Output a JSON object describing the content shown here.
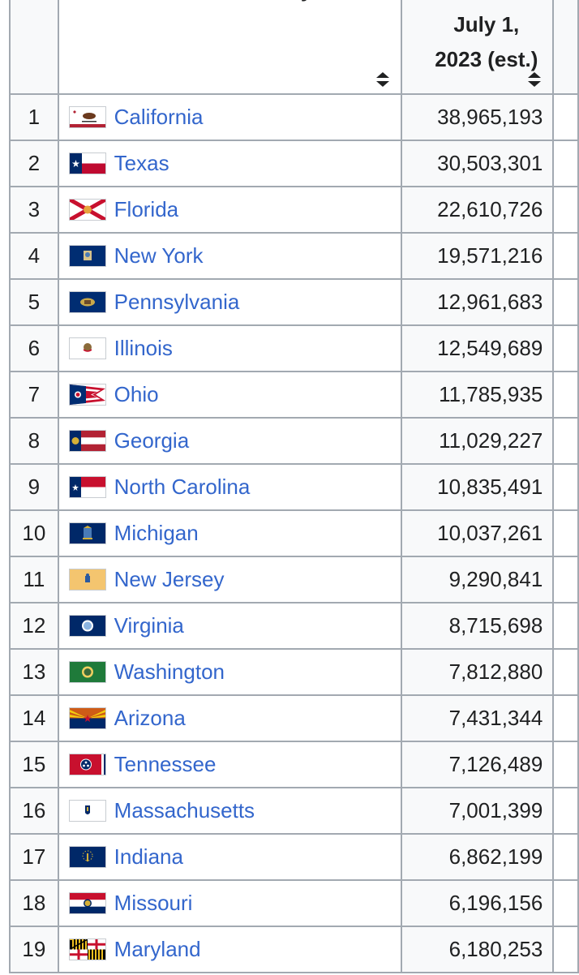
{
  "headers": {
    "state": "State or territory",
    "population": "July 1, 2023 (est.)"
  },
  "rows": [
    {
      "rank": "1",
      "state": "California",
      "population": "38,965,193",
      "flag": "california-flag"
    },
    {
      "rank": "2",
      "state": "Texas",
      "population": "30,503,301",
      "flag": "texas-flag"
    },
    {
      "rank": "3",
      "state": "Florida",
      "population": "22,610,726",
      "flag": "florida-flag"
    },
    {
      "rank": "4",
      "state": "New York",
      "population": "19,571,216",
      "flag": "new-york-flag"
    },
    {
      "rank": "5",
      "state": "Pennsylvania",
      "population": "12,961,683",
      "flag": "pennsylvania-flag"
    },
    {
      "rank": "6",
      "state": "Illinois",
      "population": "12,549,689",
      "flag": "illinois-flag"
    },
    {
      "rank": "7",
      "state": "Ohio",
      "population": "11,785,935",
      "flag": "ohio-flag"
    },
    {
      "rank": "8",
      "state": "Georgia",
      "population": "11,029,227",
      "flag": "georgia-flag"
    },
    {
      "rank": "9",
      "state": "North Carolina",
      "population": "10,835,491",
      "flag": "north-carolina-flag"
    },
    {
      "rank": "10",
      "state": "Michigan",
      "population": "10,037,261",
      "flag": "michigan-flag"
    },
    {
      "rank": "11",
      "state": "New Jersey",
      "population": "9,290,841",
      "flag": "new-jersey-flag"
    },
    {
      "rank": "12",
      "state": "Virginia",
      "population": "8,715,698",
      "flag": "virginia-flag"
    },
    {
      "rank": "13",
      "state": "Washington",
      "population": "7,812,880",
      "flag": "washington-flag"
    },
    {
      "rank": "14",
      "state": "Arizona",
      "population": "7,431,344",
      "flag": "arizona-flag"
    },
    {
      "rank": "15",
      "state": "Tennessee",
      "population": "7,126,489",
      "flag": "tennessee-flag"
    },
    {
      "rank": "16",
      "state": "Massachusetts",
      "population": "7,001,399",
      "flag": "massachusetts-flag"
    },
    {
      "rank": "17",
      "state": "Indiana",
      "population": "6,862,199",
      "flag": "indiana-flag"
    },
    {
      "rank": "18",
      "state": "Missouri",
      "population": "6,196,156",
      "flag": "missouri-flag"
    },
    {
      "rank": "19",
      "state": "Maryland",
      "population": "6,180,253",
      "flag": "maryland-flag"
    }
  ],
  "colors": {
    "link": "#3366cc",
    "border": "#a2a9b1",
    "header_bg": "#eaecf0",
    "cell_bg": "#f8f9fa"
  }
}
